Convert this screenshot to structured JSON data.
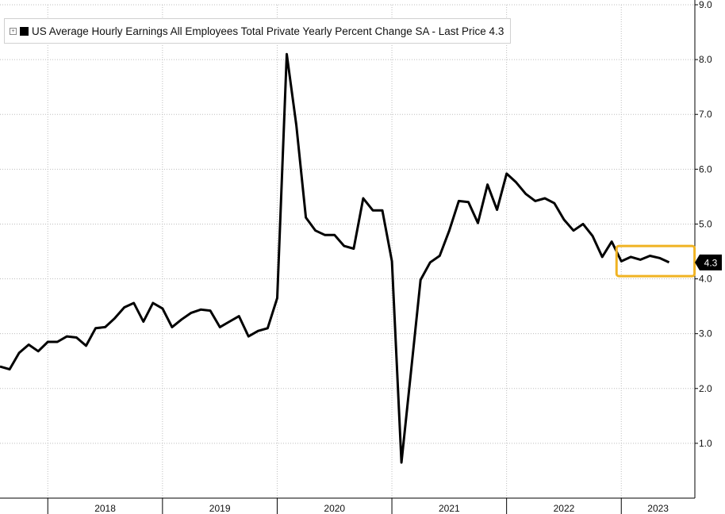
{
  "legend": {
    "expand_glyph": "+",
    "text": "US Average Hourly Earnings All Employees Total Private Yearly Percent Change SA - Last Price 4.3"
  },
  "last_price_label": "4.3",
  "colors": {
    "line": "#000000",
    "grid": "#bdbdbd",
    "highlight": "#f0b323",
    "badge_bg": "#000000",
    "badge_text": "#ffffff"
  },
  "chart_data": {
    "type": "line",
    "title": "",
    "xlabel": "",
    "ylabel": "",
    "ylim": [
      0,
      9
    ],
    "grid": true,
    "legend_position": "top-left",
    "y_ticks": [
      "1.0",
      "2.0",
      "3.0",
      "4.0",
      "5.0",
      "6.0",
      "7.0",
      "8.0",
      "9.0"
    ],
    "x_year_labels": [
      "2018",
      "2019",
      "2020",
      "2021",
      "2022",
      "2023"
    ],
    "x_start": "2017-08",
    "highlight_range": {
      "x": [
        "2023-01",
        "2023-08"
      ],
      "y": [
        4.05,
        4.6
      ]
    },
    "series": [
      {
        "values": [
          2.4,
          2.35,
          2.65,
          2.8,
          2.68,
          2.85,
          2.85,
          2.95,
          2.93,
          2.78,
          3.1,
          3.12,
          3.28,
          3.48,
          3.56,
          3.22,
          3.56,
          3.46,
          3.12,
          3.26,
          3.38,
          3.44,
          3.42,
          3.12,
          3.22,
          3.32,
          2.95,
          3.05,
          3.1,
          3.65,
          8.1,
          6.8,
          5.12,
          4.88,
          4.8,
          4.8,
          4.6,
          4.55,
          5.47,
          5.25,
          5.25,
          4.32,
          0.65,
          2.3,
          3.98,
          4.3,
          4.42,
          4.88,
          5.42,
          5.4,
          5.02,
          5.72,
          5.26,
          5.92,
          5.76,
          5.55,
          5.42,
          5.47,
          5.38,
          5.08,
          4.88,
          5.0,
          4.78,
          4.4,
          4.68,
          4.32,
          4.4,
          4.35,
          4.42,
          4.38,
          4.3
        ]
      }
    ]
  }
}
